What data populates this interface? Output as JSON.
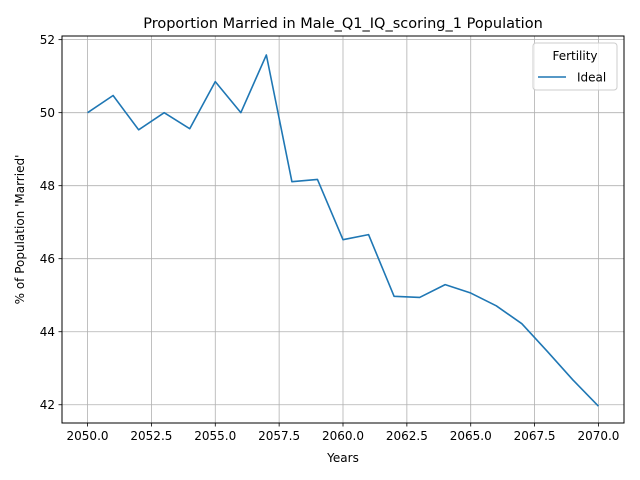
{
  "chart_data": {
    "type": "line",
    "title": "Proportion Married in Male_Q1_IQ_scoring_1 Population",
    "xlabel": "Years",
    "ylabel": "% of Population 'Married'",
    "xlim": [
      2049,
      2071
    ],
    "ylim": [
      41.5,
      52.1
    ],
    "xticks": [
      2050.0,
      2052.5,
      2055.0,
      2057.5,
      2060.0,
      2062.5,
      2065.0,
      2067.5,
      2070.0
    ],
    "xtick_labels": [
      "2050.0",
      "2052.5",
      "2055.0",
      "2057.5",
      "2060.0",
      "2062.5",
      "2065.0",
      "2067.5",
      "2070.0"
    ],
    "yticks": [
      42,
      44,
      46,
      48,
      50,
      52
    ],
    "ytick_labels": [
      "42",
      "44",
      "46",
      "48",
      "50",
      "52"
    ],
    "grid": true,
    "legend": {
      "title": "Fertility",
      "position": "top-right"
    },
    "x": [
      2050,
      2051,
      2052,
      2053,
      2054,
      2055,
      2056,
      2057,
      2058,
      2059,
      2060,
      2061,
      2062,
      2063,
      2064,
      2065,
      2066,
      2067,
      2068,
      2069,
      2070
    ],
    "series": [
      {
        "name": "Ideal",
        "color": "#1f77b4",
        "values": [
          50.0,
          50.47,
          49.53,
          50.0,
          49.56,
          50.85,
          50.0,
          51.58,
          48.11,
          48.17,
          46.52,
          46.66,
          44.97,
          44.94,
          45.29,
          45.06,
          44.71,
          44.22,
          43.46,
          42.68,
          41.96
        ]
      }
    ]
  }
}
